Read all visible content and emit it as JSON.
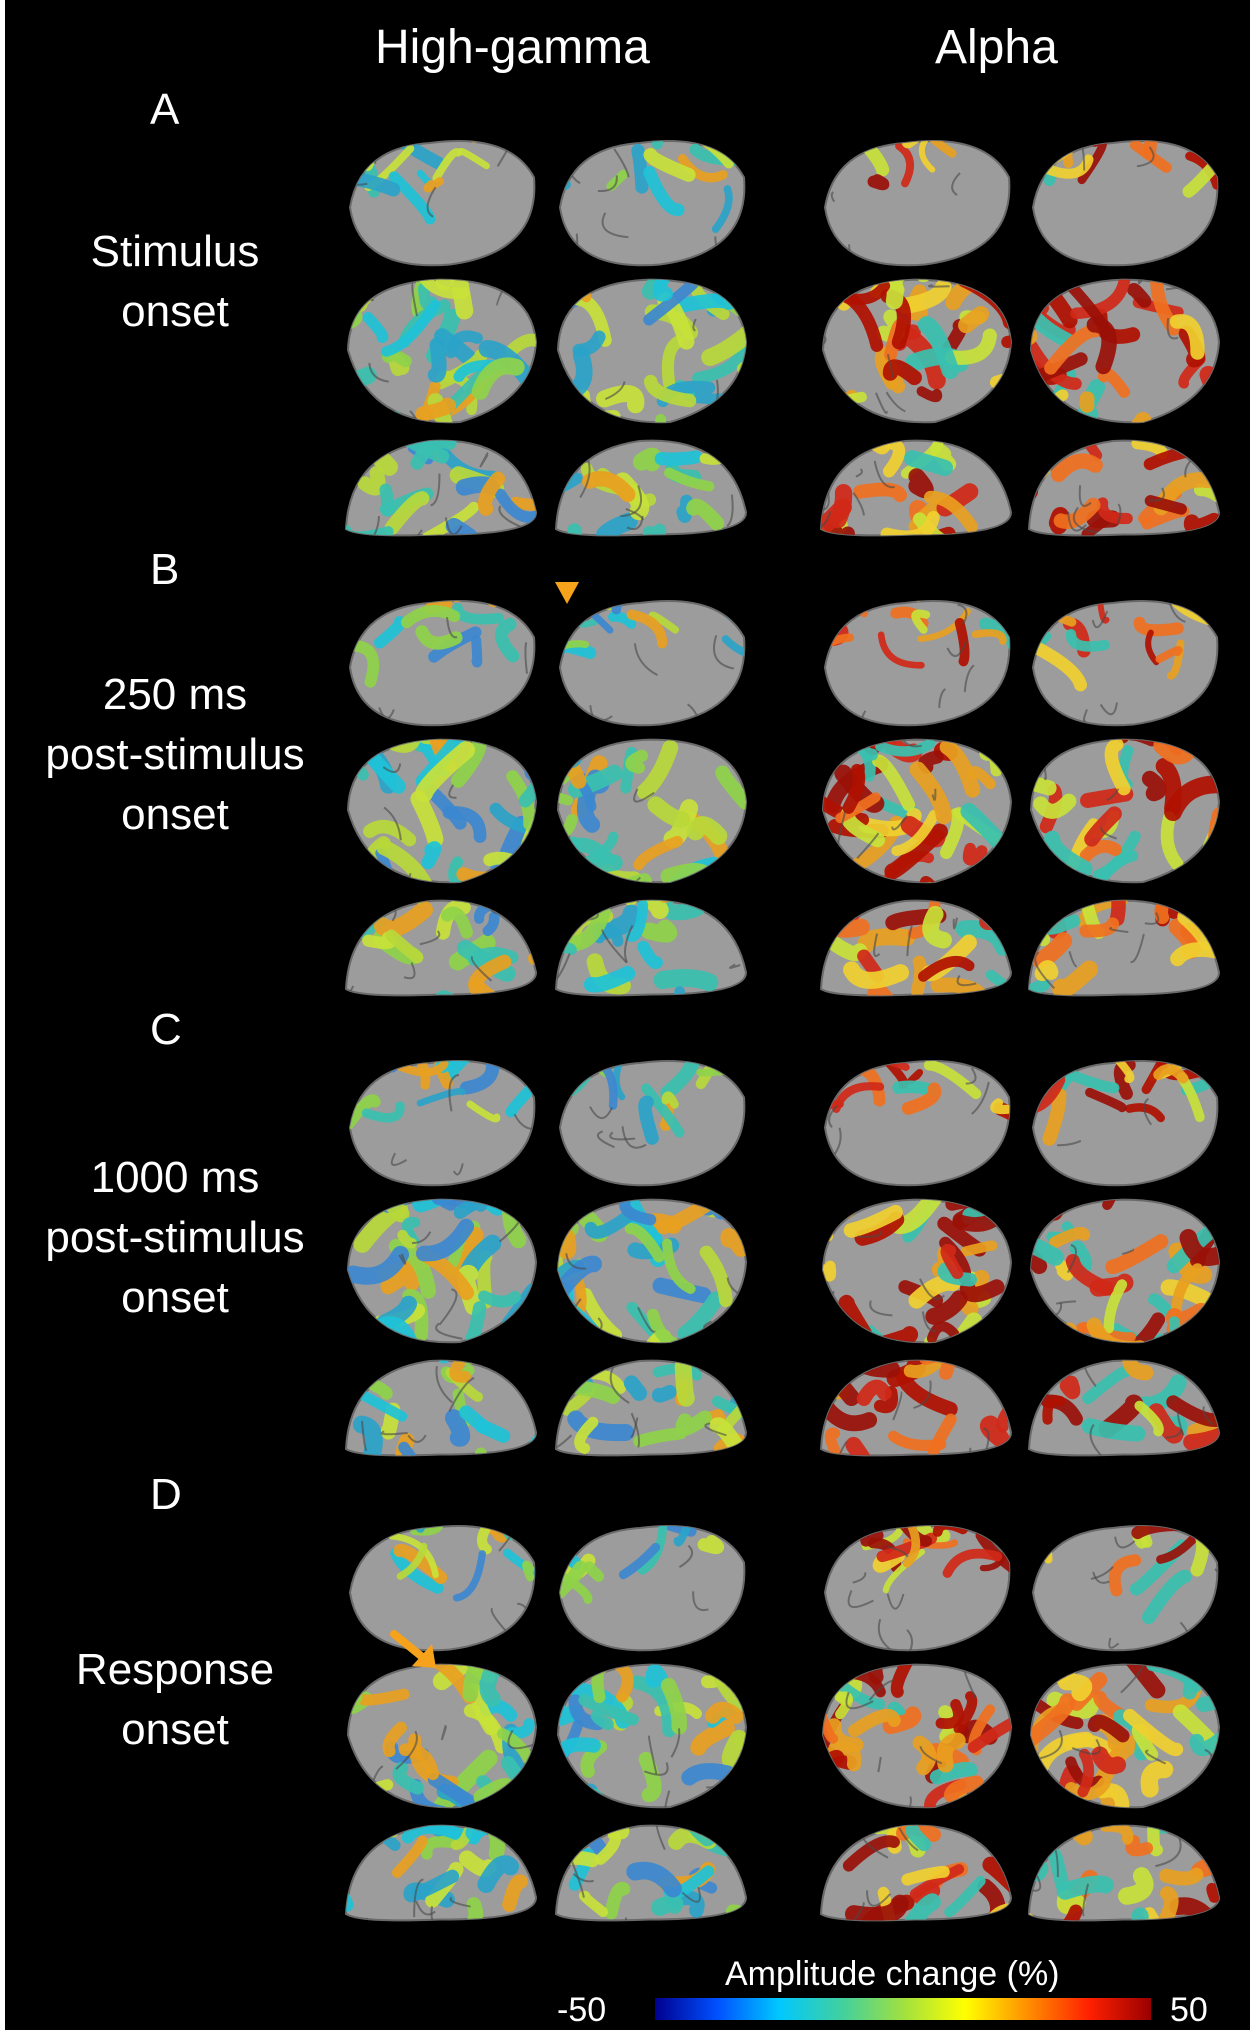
{
  "columns": {
    "left": "High-gamma",
    "right": "Alpha"
  },
  "panels": [
    {
      "letter": "A",
      "label": [
        "Stimulus",
        "onset"
      ]
    },
    {
      "letter": "B",
      "label": [
        "250 ms",
        "post-stimulus",
        "onset"
      ]
    },
    {
      "letter": "C",
      "label": [
        "1000 ms",
        "post-stimulus",
        "onset"
      ]
    },
    {
      "letter": "D",
      "label": [
        "Response",
        "onset"
      ]
    }
  ],
  "colorbar": {
    "title": "Amplitude change (%)",
    "min": "-50",
    "max": "50",
    "colors": [
      "#00008f",
      "#0050ff",
      "#00c8ff",
      "#40d0a0",
      "#a0e040",
      "#ffff00",
      "#ff9000",
      "#ff2000",
      "#9a0000"
    ]
  },
  "markers": {
    "arrowhead_color": "#f7a21b",
    "arrow_color": "#f7a21b"
  },
  "view_order": [
    "medial",
    "lateral",
    "ventral"
  ]
}
